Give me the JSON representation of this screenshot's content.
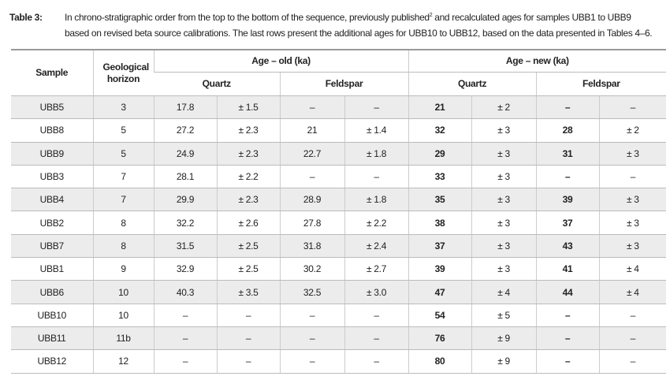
{
  "caption": {
    "label": "Table 3:",
    "line1": "In chrono-stratigraphic order from the top to the bottom of the sequence, previously published",
    "sup": "2",
    "line1_end": " and recalculated ages for samples UBB1 to UBB9",
    "line2": "based on revised beta source calibrations. The last rows present the additional ages for UBB10 to UBB12, based on the data presented in Tables 4–6."
  },
  "table": {
    "header": {
      "sample": "Sample",
      "horizon": "Geological horizon",
      "old": "Age – old (ka)",
      "new": "Age – new (ka)",
      "old_quartz": "Quartz",
      "old_feldspar": "Feldspar",
      "new_quartz": "Quartz",
      "new_feldspar": "Feldspar"
    },
    "rows": [
      [
        "UBB5",
        "3",
        "17.8",
        "± 1.5",
        "–",
        "–",
        "21",
        "± 2",
        "–",
        "–"
      ],
      [
        "UBB8",
        "5",
        "27.2",
        "± 2.3",
        "21",
        "± 1.4",
        "32",
        "± 3",
        "28",
        "± 2"
      ],
      [
        "UBB9",
        "5",
        "24.9",
        "± 2.3",
        "22.7",
        "± 1.8",
        "29",
        "± 3",
        "31",
        "± 3"
      ],
      [
        "UBB3",
        "7",
        "28.1",
        "± 2.2",
        "–",
        "–",
        "33",
        "± 3",
        "–",
        "–"
      ],
      [
        "UBB4",
        "7",
        "29.9",
        "± 2.3",
        "28.9",
        "± 1.8",
        "35",
        "± 3",
        "39",
        "± 3"
      ],
      [
        "UBB2",
        "8",
        "32.2",
        "± 2.6",
        "27.8",
        "± 2.2",
        "38",
        "± 3",
        "37",
        "± 3"
      ],
      [
        "UBB7",
        "8",
        "31.5",
        "± 2.5",
        "31.8",
        "± 2.4",
        "37",
        "± 3",
        "43",
        "± 3"
      ],
      [
        "UBB1",
        "9",
        "32.9",
        "± 2.5",
        "30.2",
        "± 2.7",
        "39",
        "± 3",
        "41",
        "± 4"
      ],
      [
        "UBB6",
        "10",
        "40.3",
        "± 3.5",
        "32.5",
        "± 3.0",
        "47",
        "± 4",
        "44",
        "± 4"
      ],
      [
        "UBB10",
        "10",
        "–",
        "–",
        "–",
        "–",
        "54",
        "± 5",
        "–",
        "–"
      ],
      [
        "UBB11",
        "11b",
        "–",
        "–",
        "–",
        "–",
        "76",
        "± 9",
        "–",
        "–"
      ],
      [
        "UBB12",
        "12",
        "–",
        "–",
        "–",
        "–",
        "80",
        "± 9",
        "–",
        "–"
      ]
    ]
  }
}
